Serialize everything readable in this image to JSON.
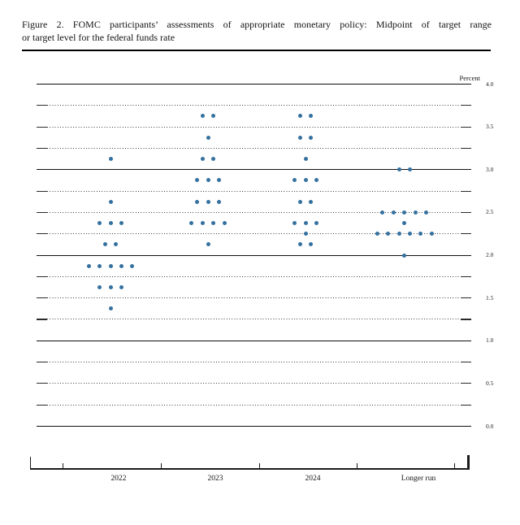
{
  "header": {
    "title_line1": "Figure 2.  FOMC participants’ assessments of appropriate monetary policy:  Midpoint of target range",
    "title_line2": "or target level for the federal funds rate"
  },
  "chart_data": {
    "type": "scatter",
    "title": "Figure 2. FOMC participants’ assessments of appropriate monetary policy: Midpoint of target range or target level for the federal funds rate",
    "ylabel": "Percent",
    "ylim": [
      0.0,
      4.0
    ],
    "grid": {
      "step": 0.25,
      "solid_every": 1.0,
      "dotted_between": true
    },
    "ytick_labels": [
      "4.0",
      "3.5",
      "3.0",
      "2.5",
      "2.0",
      "1.5",
      "1.0",
      "0.5",
      "0.0"
    ],
    "categories": [
      "2022",
      "2023",
      "2024",
      "Longer run"
    ],
    "dot_color": "#35719f",
    "series": [
      {
        "category": "2022",
        "dots": [
          {
            "rate": 3.125,
            "count": 1
          },
          {
            "rate": 2.625,
            "count": 1
          },
          {
            "rate": 2.375,
            "count": 3
          },
          {
            "rate": 2.125,
            "count": 2
          },
          {
            "rate": 1.875,
            "count": 5
          },
          {
            "rate": 1.625,
            "count": 3
          },
          {
            "rate": 1.375,
            "count": 1
          }
        ]
      },
      {
        "category": "2023",
        "dots": [
          {
            "rate": 3.625,
            "count": 2
          },
          {
            "rate": 3.375,
            "count": 1
          },
          {
            "rate": 3.125,
            "count": 2
          },
          {
            "rate": 2.875,
            "count": 3
          },
          {
            "rate": 2.625,
            "count": 3
          },
          {
            "rate": 2.375,
            "count": 4
          },
          {
            "rate": 2.125,
            "count": 1
          }
        ]
      },
      {
        "category": "2024",
        "dots": [
          {
            "rate": 3.625,
            "count": 2
          },
          {
            "rate": 3.375,
            "count": 2
          },
          {
            "rate": 3.125,
            "count": 1
          },
          {
            "rate": 2.875,
            "count": 3
          },
          {
            "rate": 2.625,
            "count": 2
          },
          {
            "rate": 2.375,
            "count": 3
          },
          {
            "rate": 2.25,
            "count": 1
          },
          {
            "rate": 2.125,
            "count": 2
          }
        ]
      },
      {
        "category": "Longer run",
        "dots": [
          {
            "rate": 3.0,
            "count": 2
          },
          {
            "rate": 2.5,
            "count": 5
          },
          {
            "rate": 2.375,
            "count": 1
          },
          {
            "rate": 2.25,
            "count": 6
          },
          {
            "rate": 2.0,
            "count": 1
          }
        ]
      }
    ]
  }
}
